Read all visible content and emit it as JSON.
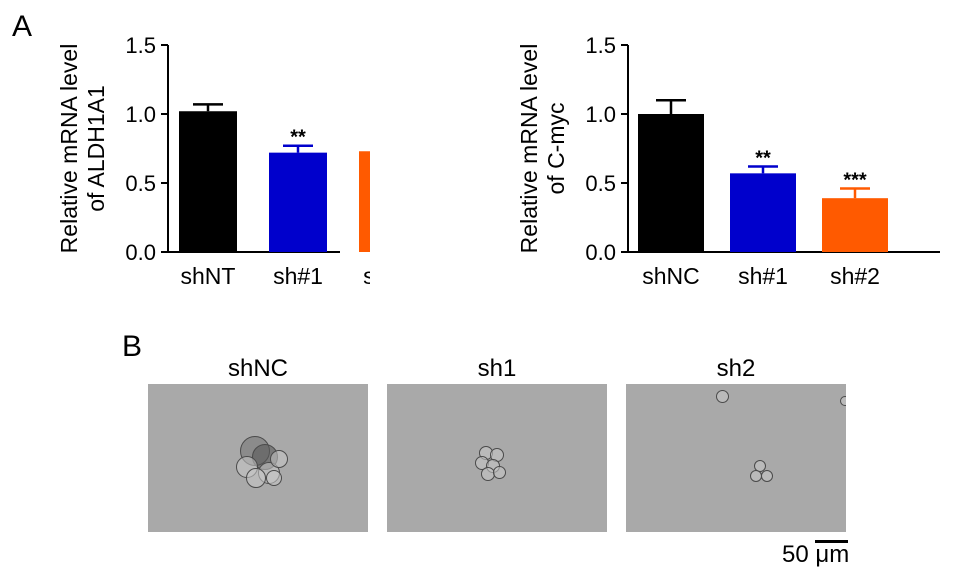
{
  "panel_labels": {
    "a": "A",
    "b": "B"
  },
  "chart_data": [
    {
      "type": "bar",
      "ylabel_line1": "Relative mRNA level",
      "ylabel_line2": "of ALDH1A1",
      "categories": [
        "shNT",
        "sh#1",
        "sh#2"
      ],
      "values": [
        1.02,
        0.72,
        0.73
      ],
      "errors": [
        0.05,
        0.05,
        0.06
      ],
      "significance": [
        "",
        "**",
        "**"
      ],
      "colors": [
        "#000000",
        "#0000cc",
        "#ff5a00"
      ],
      "ylim": [
        0,
        1.5
      ],
      "yticks": [
        "0.0",
        "0.5",
        "1.0",
        "1.5"
      ],
      "ytick_values": [
        0,
        0.5,
        1.0,
        1.5
      ]
    },
    {
      "type": "bar",
      "ylabel_line1": "Relative mRNA level",
      "ylabel_line2": "of C-myc",
      "categories": [
        "shNC",
        "sh#1",
        "sh#2"
      ],
      "values": [
        1.0,
        0.57,
        0.39
      ],
      "errors": [
        0.1,
        0.05,
        0.07
      ],
      "significance": [
        "",
        "**",
        "***"
      ],
      "colors": [
        "#000000",
        "#0000cc",
        "#ff5a00"
      ],
      "ylim": [
        0,
        1.5
      ],
      "yticks": [
        "0.0",
        "0.5",
        "1.0",
        "1.5"
      ],
      "ytick_values": [
        0,
        0.5,
        1.0,
        1.5
      ]
    }
  ],
  "micrographs": [
    {
      "label": "shNC"
    },
    {
      "label": "sh1"
    },
    {
      "label": "sh2"
    }
  ],
  "scale_bar": {
    "label": "50 μm"
  }
}
